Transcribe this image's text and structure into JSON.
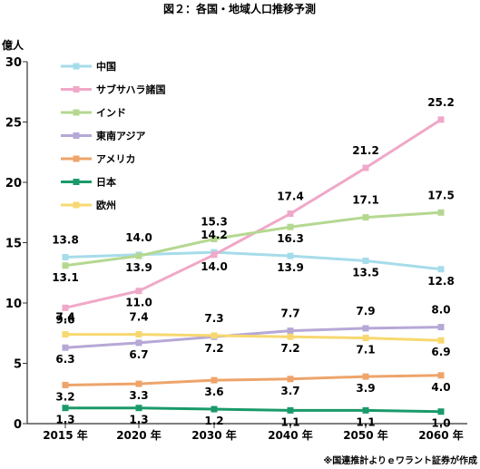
{
  "chart_data": {
    "type": "line",
    "title": "図２：各国・地域人口推移予測",
    "ylabel": "億人",
    "ylim": [
      0,
      30
    ],
    "yticks": [
      0,
      5,
      10,
      15,
      20,
      25,
      30
    ],
    "categories": [
      "2015 年",
      "2020 年",
      "2030 年",
      "2040 年",
      "2050 年",
      "2060 年"
    ],
    "legend_position": "top-left",
    "grid": false,
    "source_note": "※国連推計よりｅワラント証券が作成",
    "series": [
      {
        "name": "中国",
        "color": "#a6dcea",
        "values": [
          13.8,
          14.0,
          14.2,
          13.9,
          13.5,
          12.8
        ]
      },
      {
        "name": "サブサハラ諸国",
        "color": "#f0a8c8",
        "values": [
          9.6,
          11.0,
          14.0,
          17.4,
          21.2,
          25.2
        ]
      },
      {
        "name": "インド",
        "color": "#b4d890",
        "values": [
          13.1,
          13.9,
          15.3,
          16.3,
          17.1,
          17.5
        ]
      },
      {
        "name": "東南アジア",
        "color": "#b6a8d6",
        "values": [
          6.3,
          6.7,
          7.2,
          7.7,
          7.9,
          8.0
        ]
      },
      {
        "name": "アメリカ",
        "color": "#eea46a",
        "values": [
          3.2,
          3.3,
          3.6,
          3.7,
          3.9,
          4.0
        ]
      },
      {
        "name": "日本",
        "color": "#1a9a6a",
        "values": [
          1.3,
          1.3,
          1.2,
          1.1,
          1.1,
          1.0
        ]
      },
      {
        "name": "欧州",
        "color": "#f7d870",
        "values": [
          7.4,
          7.4,
          7.3,
          7.2,
          7.1,
          6.9
        ]
      }
    ]
  }
}
